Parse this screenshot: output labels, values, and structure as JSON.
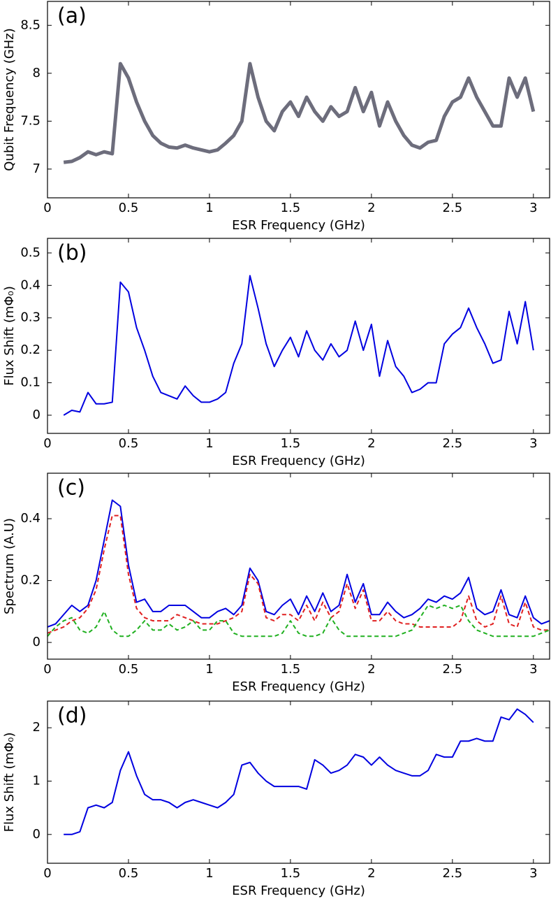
{
  "chart_data": [
    {
      "type": "line",
      "label": "(a)",
      "xlabel": "ESR Frequency (GHz)",
      "ylabel": "Qubit Frequency (GHz)",
      "xlim": [
        0,
        3.1
      ],
      "xticks": [
        0,
        0.5,
        1,
        1.5,
        2,
        2.5,
        3
      ],
      "ylim": [
        6.7,
        8.75
      ],
      "yticks": [
        7,
        7.5,
        8,
        8.5
      ],
      "x": [
        0.1,
        0.15,
        0.2,
        0.25,
        0.3,
        0.35,
        0.4,
        0.45,
        0.5,
        0.55,
        0.6,
        0.65,
        0.7,
        0.75,
        0.8,
        0.85,
        0.9,
        0.95,
        1.0,
        1.05,
        1.1,
        1.15,
        1.2,
        1.25,
        1.3,
        1.35,
        1.4,
        1.45,
        1.5,
        1.55,
        1.6,
        1.65,
        1.7,
        1.75,
        1.8,
        1.85,
        1.9,
        1.95,
        2.0,
        2.05,
        2.1,
        2.15,
        2.2,
        2.25,
        2.3,
        2.35,
        2.4,
        2.45,
        2.5,
        2.55,
        2.6,
        2.65,
        2.7,
        2.75,
        2.8,
        2.85,
        2.9,
        2.95,
        3.0
      ],
      "series": [
        {
          "color": "#3c3c50",
          "width": 5,
          "opacity": 0.75,
          "values": [
            7.07,
            7.08,
            7.12,
            7.18,
            7.15,
            7.18,
            7.16,
            8.1,
            7.95,
            7.7,
            7.5,
            7.35,
            7.27,
            7.23,
            7.22,
            7.25,
            7.22,
            7.2,
            7.18,
            7.2,
            7.27,
            7.35,
            7.5,
            8.1,
            7.75,
            7.5,
            7.4,
            7.6,
            7.7,
            7.55,
            7.75,
            7.6,
            7.5,
            7.65,
            7.55,
            7.6,
            7.85,
            7.6,
            7.8,
            7.45,
            7.7,
            7.5,
            7.35,
            7.25,
            7.22,
            7.28,
            7.3,
            7.55,
            7.7,
            7.75,
            7.95,
            7.75,
            7.6,
            7.45,
            7.45,
            7.95,
            7.75,
            7.95,
            7.6
          ]
        }
      ]
    },
    {
      "type": "line",
      "label": "(b)",
      "xlabel": "ESR Frequency (GHz)",
      "ylabel": "Flux Shift (mΦ₀)",
      "xlim": [
        0,
        3.1
      ],
      "xticks": [
        0,
        0.5,
        1,
        1.5,
        2,
        2.5,
        3
      ],
      "ylim": [
        -0.056,
        0.545
      ],
      "yticks": [
        0,
        0.1,
        0.2,
        0.3,
        0.4,
        0.5
      ],
      "x": [
        0.1,
        0.15,
        0.2,
        0.25,
        0.3,
        0.35,
        0.4,
        0.45,
        0.5,
        0.55,
        0.6,
        0.65,
        0.7,
        0.75,
        0.8,
        0.85,
        0.9,
        0.95,
        1.0,
        1.05,
        1.1,
        1.15,
        1.2,
        1.25,
        1.3,
        1.35,
        1.4,
        1.45,
        1.5,
        1.55,
        1.6,
        1.65,
        1.7,
        1.75,
        1.8,
        1.85,
        1.9,
        1.95,
        2.0,
        2.05,
        2.1,
        2.15,
        2.2,
        2.25,
        2.3,
        2.35,
        2.4,
        2.45,
        2.5,
        2.55,
        2.6,
        2.65,
        2.7,
        2.75,
        2.8,
        2.85,
        2.9,
        2.95,
        3.0
      ],
      "series": [
        {
          "color": "#0000e0",
          "width": 2,
          "values": [
            0.0,
            0.015,
            0.01,
            0.07,
            0.035,
            0.035,
            0.04,
            0.41,
            0.38,
            0.27,
            0.2,
            0.12,
            0.07,
            0.06,
            0.05,
            0.09,
            0.06,
            0.04,
            0.04,
            0.05,
            0.07,
            0.16,
            0.22,
            0.43,
            0.33,
            0.22,
            0.15,
            0.2,
            0.24,
            0.18,
            0.26,
            0.2,
            0.17,
            0.22,
            0.18,
            0.2,
            0.29,
            0.2,
            0.28,
            0.12,
            0.23,
            0.15,
            0.12,
            0.07,
            0.08,
            0.1,
            0.1,
            0.22,
            0.25,
            0.27,
            0.33,
            0.27,
            0.22,
            0.16,
            0.17,
            0.32,
            0.22,
            0.35,
            0.2
          ]
        }
      ]
    },
    {
      "type": "line",
      "label": "(c)",
      "xlabel": "ESR Frequency (GHz)",
      "ylabel": "Spectrum (A.U)",
      "xlim": [
        0,
        3.1
      ],
      "xticks": [
        0,
        0.5,
        1,
        1.5,
        2,
        2.5,
        3
      ],
      "ylim": [
        -0.054,
        0.547
      ],
      "yticks": [
        0,
        0.2,
        0.4
      ],
      "x": [
        0,
        0.05,
        0.1,
        0.15,
        0.2,
        0.25,
        0.3,
        0.35,
        0.4,
        0.45,
        0.5,
        0.55,
        0.6,
        0.65,
        0.7,
        0.75,
        0.8,
        0.85,
        0.9,
        0.95,
        1.0,
        1.05,
        1.1,
        1.15,
        1.2,
        1.25,
        1.3,
        1.35,
        1.4,
        1.45,
        1.5,
        1.55,
        1.6,
        1.65,
        1.7,
        1.75,
        1.8,
        1.85,
        1.9,
        1.95,
        2.0,
        2.05,
        2.1,
        2.15,
        2.2,
        2.25,
        2.3,
        2.35,
        2.4,
        2.45,
        2.5,
        2.55,
        2.6,
        2.65,
        2.7,
        2.75,
        2.8,
        2.85,
        2.9,
        2.95,
        3.0,
        3.05,
        3.1
      ],
      "series": [
        {
          "color": "#0000e0",
          "width": 2,
          "style": "solid",
          "values": [
            0.05,
            0.06,
            0.09,
            0.12,
            0.1,
            0.12,
            0.2,
            0.33,
            0.46,
            0.44,
            0.25,
            0.13,
            0.14,
            0.1,
            0.1,
            0.12,
            0.12,
            0.12,
            0.1,
            0.08,
            0.08,
            0.1,
            0.11,
            0.09,
            0.12,
            0.24,
            0.2,
            0.1,
            0.09,
            0.12,
            0.14,
            0.09,
            0.15,
            0.1,
            0.16,
            0.1,
            0.12,
            0.22,
            0.13,
            0.19,
            0.09,
            0.09,
            0.13,
            0.1,
            0.08,
            0.09,
            0.11,
            0.14,
            0.13,
            0.15,
            0.14,
            0.16,
            0.21,
            0.11,
            0.09,
            0.1,
            0.17,
            0.09,
            0.08,
            0.15,
            0.08,
            0.06,
            0.07
          ]
        },
        {
          "color": "#e02020",
          "width": 2,
          "style": "dashed",
          "values": [
            0.03,
            0.04,
            0.05,
            0.07,
            0.08,
            0.11,
            0.17,
            0.3,
            0.41,
            0.41,
            0.22,
            0.11,
            0.08,
            0.07,
            0.07,
            0.07,
            0.09,
            0.08,
            0.07,
            0.06,
            0.06,
            0.06,
            0.07,
            0.08,
            0.1,
            0.22,
            0.19,
            0.08,
            0.07,
            0.09,
            0.09,
            0.07,
            0.12,
            0.07,
            0.13,
            0.08,
            0.1,
            0.19,
            0.11,
            0.17,
            0.07,
            0.07,
            0.1,
            0.07,
            0.06,
            0.06,
            0.05,
            0.05,
            0.05,
            0.05,
            0.05,
            0.07,
            0.15,
            0.07,
            0.05,
            0.06,
            0.15,
            0.06,
            0.05,
            0.13,
            0.05,
            0.04,
            0.04
          ]
        },
        {
          "color": "#20b020",
          "width": 2,
          "style": "dashed",
          "values": [
            0.02,
            0.05,
            0.07,
            0.08,
            0.04,
            0.03,
            0.05,
            0.1,
            0.04,
            0.02,
            0.02,
            0.04,
            0.07,
            0.04,
            0.04,
            0.06,
            0.04,
            0.05,
            0.07,
            0.04,
            0.04,
            0.07,
            0.07,
            0.03,
            0.02,
            0.02,
            0.02,
            0.02,
            0.02,
            0.03,
            0.07,
            0.03,
            0.02,
            0.02,
            0.03,
            0.08,
            0.04,
            0.02,
            0.02,
            0.02,
            0.02,
            0.02,
            0.02,
            0.02,
            0.03,
            0.04,
            0.08,
            0.12,
            0.11,
            0.12,
            0.11,
            0.12,
            0.07,
            0.04,
            0.03,
            0.02,
            0.02,
            0.02,
            0.02,
            0.02,
            0.02,
            0.03,
            0.04
          ]
        }
      ]
    },
    {
      "type": "line",
      "label": "(d)",
      "xlabel": "ESR Frequency (GHz)",
      "ylabel": "Flux Shift (mΦ₀)",
      "xlim": [
        0,
        3.1
      ],
      "xticks": [
        0,
        0.5,
        1,
        1.5,
        2,
        2.5,
        3
      ],
      "ylim": [
        -0.54,
        2.5
      ],
      "yticks": [
        0,
        1,
        2
      ],
      "x": [
        0.1,
        0.15,
        0.2,
        0.25,
        0.3,
        0.35,
        0.4,
        0.45,
        0.5,
        0.55,
        0.6,
        0.65,
        0.7,
        0.75,
        0.8,
        0.85,
        0.9,
        0.95,
        1.0,
        1.05,
        1.1,
        1.15,
        1.2,
        1.25,
        1.3,
        1.35,
        1.4,
        1.45,
        1.5,
        1.55,
        1.6,
        1.65,
        1.7,
        1.75,
        1.8,
        1.85,
        1.9,
        1.95,
        2.0,
        2.05,
        2.1,
        2.15,
        2.2,
        2.25,
        2.3,
        2.35,
        2.4,
        2.45,
        2.5,
        2.55,
        2.6,
        2.65,
        2.7,
        2.75,
        2.8,
        2.85,
        2.9,
        2.95,
        3.0
      ],
      "series": [
        {
          "color": "#0000e0",
          "width": 2,
          "values": [
            0,
            0.0,
            0.05,
            0.5,
            0.55,
            0.5,
            0.6,
            1.2,
            1.55,
            1.1,
            0.75,
            0.65,
            0.65,
            0.6,
            0.5,
            0.6,
            0.65,
            0.6,
            0.55,
            0.5,
            0.6,
            0.75,
            1.3,
            1.35,
            1.15,
            1.0,
            0.9,
            0.9,
            0.9,
            0.9,
            0.85,
            1.4,
            1.3,
            1.15,
            1.2,
            1.3,
            1.5,
            1.45,
            1.3,
            1.45,
            1.3,
            1.2,
            1.15,
            1.1,
            1.1,
            1.2,
            1.5,
            1.45,
            1.45,
            1.75,
            1.75,
            1.8,
            1.75,
            1.75,
            2.2,
            2.15,
            2.35,
            2.25,
            2.1
          ]
        }
      ]
    }
  ]
}
